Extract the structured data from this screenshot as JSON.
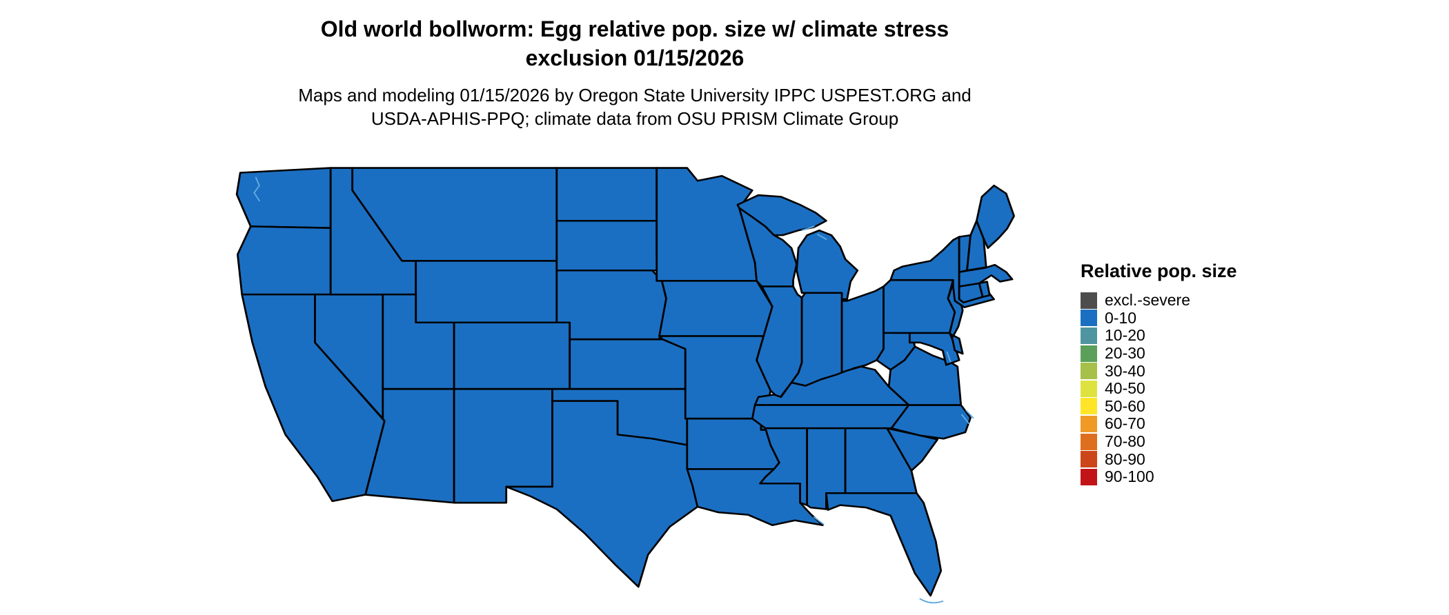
{
  "header": {
    "title_line1": "Old world bollworm: Egg relative pop. size w/ climate stress",
    "title_line2": "exclusion 01/15/2026",
    "subtitle_line1": "Maps and modeling 01/15/2026 by Oregon State University IPPC USPEST.ORG and",
    "subtitle_line2": "USDA-APHIS-PPQ; climate data from OSU PRISM Climate Group"
  },
  "map": {
    "region": "Continental United States",
    "uniform_category": "0-10",
    "fill_color": "#1b6fc2",
    "border_color": "#000000",
    "water_color": "#5fa8e0"
  },
  "legend": {
    "title": "Relative pop. size",
    "items": [
      {
        "label": "excl.-severe",
        "color": "#4d4d4d"
      },
      {
        "label": "0-10",
        "color": "#1b6fc2"
      },
      {
        "label": "10-20",
        "color": "#4f95a0"
      },
      {
        "label": "20-30",
        "color": "#5aa05a"
      },
      {
        "label": "30-40",
        "color": "#a6c04a"
      },
      {
        "label": "40-50",
        "color": "#dde23f"
      },
      {
        "label": "50-60",
        "color": "#ffe428"
      },
      {
        "label": "60-70",
        "color": "#f09a26"
      },
      {
        "label": "70-80",
        "color": "#dd6f1e"
      },
      {
        "label": "80-90",
        "color": "#cc4619"
      },
      {
        "label": "90-100",
        "color": "#c21418"
      }
    ]
  }
}
